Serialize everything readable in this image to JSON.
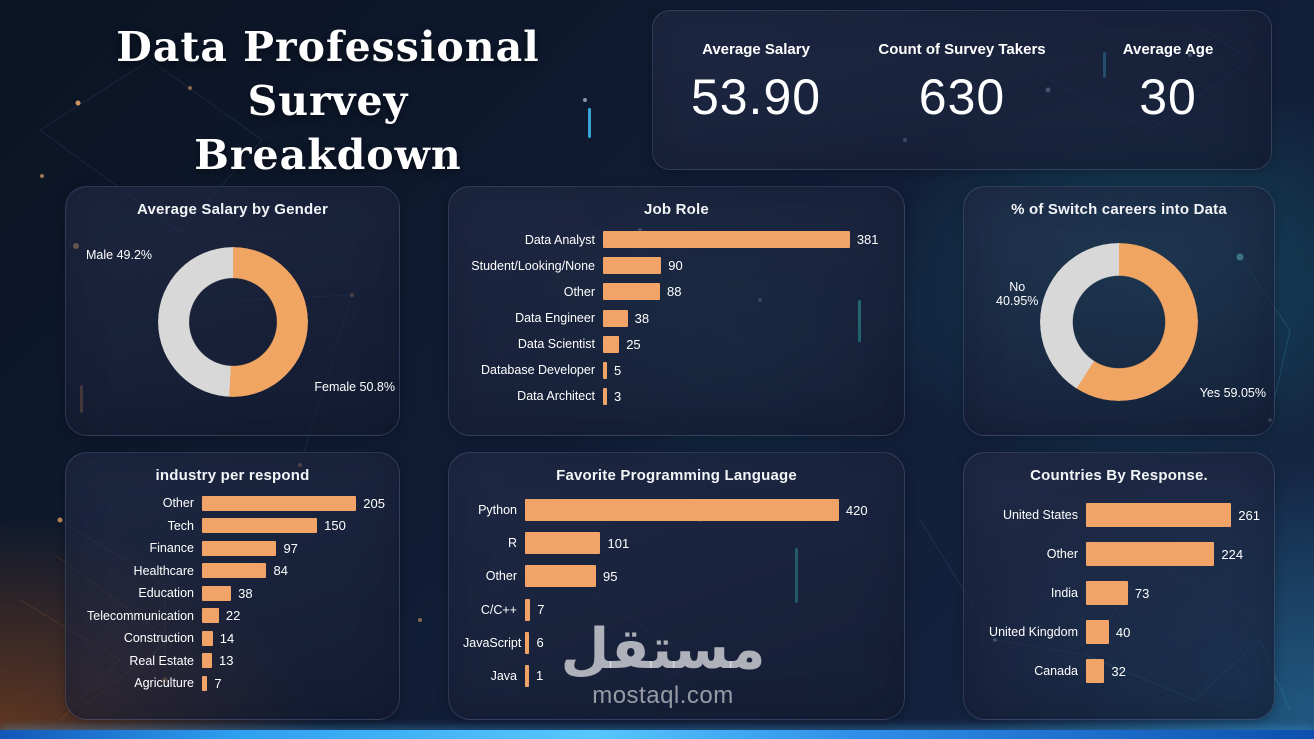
{
  "title": {
    "line1": "Data Professional Survey",
    "line2": "Breakdown"
  },
  "kpis": [
    {
      "label": "Average Salary",
      "value": "53.90"
    },
    {
      "label": "Count of Survey Takers",
      "value": "630"
    },
    {
      "label": "Average Age",
      "value": "30"
    }
  ],
  "watermark": {
    "logo": "مستقل",
    "site": "mostaql.com"
  },
  "colors": {
    "bar_orange": "#f2a468",
    "donut_gray": "#d8d8d8",
    "donut_orange": "#f0a562"
  },
  "chart_data": [
    {
      "id": "gender",
      "type": "pie",
      "title": "Average Salary by Gender",
      "segments": [
        {
          "label": "Female",
          "value": 50.8,
          "color": "#f0a562"
        },
        {
          "label": "Male",
          "value": 49.2,
          "color": "#d8d8d8"
        }
      ],
      "callouts": [
        {
          "text": "Male 49.2%"
        },
        {
          "text": "Female 50.8%"
        }
      ]
    },
    {
      "id": "job-role",
      "type": "bar",
      "title": "Job Role",
      "categories": [
        "Data Analyst",
        "Student/Looking/None",
        "Other",
        "Data Engineer",
        "Data Scientist",
        "Database Developer",
        "Data Architect"
      ],
      "values": [
        381,
        90,
        88,
        38,
        25,
        5,
        3
      ]
    },
    {
      "id": "switch",
      "type": "pie",
      "title": "% of Switch careers into Data",
      "segments": [
        {
          "label": "Yes",
          "value": 59.05,
          "color": "#f0a562"
        },
        {
          "label": "No",
          "value": 40.95,
          "color": "#d8d8d8"
        }
      ],
      "callouts": [
        {
          "text": "No\n40.95%"
        },
        {
          "text": "Yes 59.05%"
        }
      ]
    },
    {
      "id": "industry",
      "type": "bar",
      "title": "industry per respond",
      "categories": [
        "Other",
        "Tech",
        "Finance",
        "Healthcare",
        "Education",
        "Telecommunication",
        "Construction",
        "Real Estate",
        "Agriculture"
      ],
      "values": [
        205,
        150,
        97,
        84,
        38,
        22,
        14,
        13,
        7
      ]
    },
    {
      "id": "language",
      "type": "bar",
      "title": "Favorite Programming Language",
      "categories": [
        "Python",
        "R",
        "Other",
        "C/C++",
        "JavaScript",
        "Java"
      ],
      "values": [
        420,
        101,
        95,
        7,
        6,
        1
      ]
    },
    {
      "id": "countries",
      "type": "bar",
      "title": "Countries By Response.",
      "categories": [
        "United States",
        "Other",
        "India",
        "United Kingdom",
        "Canada"
      ],
      "values": [
        261,
        224,
        73,
        40,
        32
      ]
    }
  ]
}
